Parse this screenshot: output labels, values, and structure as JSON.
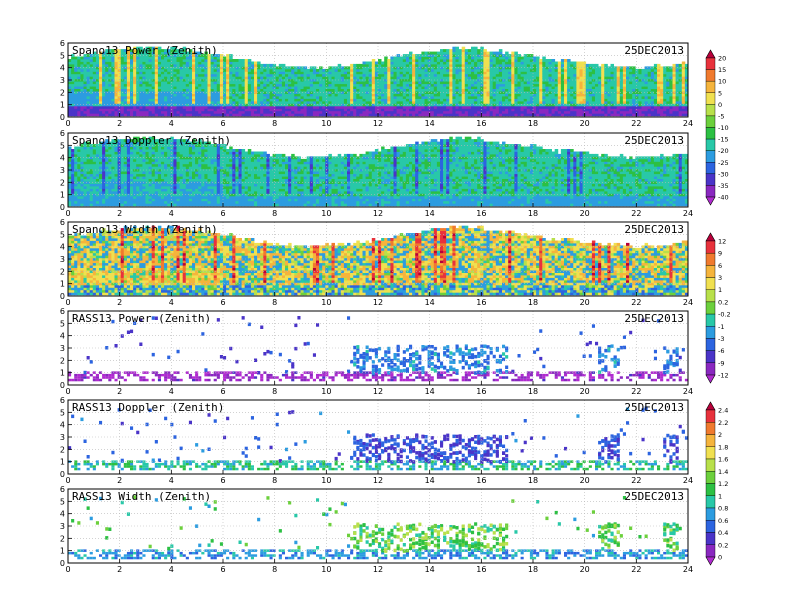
{
  "chart_data": [
    {
      "type": "heatmap",
      "title": "Spano13 Power (Zenith)",
      "date": "25DEC2013",
      "xlim": [
        0,
        24
      ],
      "ylim": [
        0,
        6
      ],
      "x_ticks": [
        "0",
        "2",
        "4",
        "6",
        "8",
        "10",
        "12",
        "14",
        "16",
        "18",
        "20",
        "22",
        "24"
      ],
      "y_ticks": [
        "0",
        "1",
        "2",
        "3",
        "4",
        "5",
        "6"
      ],
      "colorbar": "power",
      "coverage": "full",
      "pattern": {
        "base_level": -17,
        "low_band_level": -35,
        "mid_band_level": -22,
        "streak_level": 4
      }
    },
    {
      "type": "heatmap",
      "title": "Spano13 Doppler (Zenith)",
      "date": "25DEC2013",
      "xlim": [
        0,
        24
      ],
      "ylim": [
        0,
        6
      ],
      "x_ticks": [
        "0",
        "2",
        "4",
        "6",
        "8",
        "10",
        "12",
        "14",
        "16",
        "18",
        "20",
        "22",
        "24"
      ],
      "y_ticks": [
        "0",
        "1",
        "2",
        "3",
        "4",
        "5",
        "6"
      ],
      "colorbar": "power",
      "coverage": "full",
      "pattern": {
        "base_level": -17,
        "low_band_level": -22,
        "mid_band_level": -20,
        "streak_level": -28
      }
    },
    {
      "type": "heatmap",
      "title": "Spano13 Width (Zenith)",
      "date": "25DEC2013",
      "xlim": [
        0,
        24
      ],
      "ylim": [
        0,
        6
      ],
      "x_ticks": [
        "0",
        "2",
        "4",
        "6",
        "8",
        "10",
        "12",
        "14",
        "16",
        "18",
        "20",
        "22",
        "24"
      ],
      "y_ticks": [
        "0",
        "1",
        "2",
        "3",
        "4",
        "5",
        "6"
      ],
      "colorbar": "width",
      "coverage": "full",
      "pattern": {
        "base_level": 1,
        "low_band_level": -1,
        "mid_band_level": 2,
        "streak_level": 9
      }
    },
    {
      "type": "heatmap",
      "title": "RASS13 Power (Zenith)",
      "date": "25DEC2013",
      "xlim": [
        0,
        24
      ],
      "ylim": [
        0,
        6
      ],
      "x_ticks": [
        "0",
        "2",
        "4",
        "6",
        "8",
        "10",
        "12",
        "14",
        "16",
        "18",
        "20",
        "22",
        "24"
      ],
      "y_ticks": [
        "0",
        "1",
        "2",
        "3",
        "4",
        "5",
        "6"
      ],
      "colorbar": "width",
      "coverage": "sparse",
      "pattern": {
        "base_level": -10,
        "low_band_level": -12,
        "mid_band_level": -6,
        "streak_level": -3
      }
    },
    {
      "type": "heatmap",
      "title": "RASS13 Doppler (Zenith)",
      "date": "25DEC2013",
      "xlim": [
        0,
        24
      ],
      "ylim": [
        0,
        6
      ],
      "x_ticks": [
        "0",
        "2",
        "4",
        "6",
        "8",
        "10",
        "12",
        "14",
        "16",
        "18",
        "20",
        "22",
        "24"
      ],
      "y_ticks": [
        "0",
        "1",
        "2",
        "3",
        "4",
        "5",
        "6"
      ],
      "colorbar": "rass",
      "coverage": "sparse",
      "pattern": {
        "base_level": 1.0,
        "low_band_level": 0.9,
        "mid_band_level": 0.5,
        "streak_level": 0.4
      }
    },
    {
      "type": "heatmap",
      "title": "RASS13 Width (Zenith)",
      "date": "25DEC2013",
      "xlim": [
        0,
        24
      ],
      "ylim": [
        0,
        6
      ],
      "x_ticks": [
        "0",
        "2",
        "4",
        "6",
        "8",
        "10",
        "12",
        "14",
        "16",
        "18",
        "20",
        "22",
        "24"
      ],
      "y_ticks": [
        "0",
        "1",
        "2",
        "3",
        "4",
        "5",
        "6"
      ],
      "colorbar": "rass",
      "coverage": "sparse",
      "pattern": {
        "base_level": 0.9,
        "low_band_level": 0.7,
        "mid_band_level": 1.0,
        "streak_level": 1.2
      }
    }
  ],
  "colorbars": {
    "power": {
      "labels": [
        "20",
        "15",
        "10",
        "5",
        "0",
        "-5",
        "-10",
        "-15",
        "-20",
        "-25",
        "-30",
        "-35",
        "-40"
      ],
      "levels": [
        20,
        15,
        10,
        5,
        0,
        -5,
        -10,
        -15,
        -20,
        -25,
        -30,
        -35,
        -40
      ],
      "colors": [
        "#b8003a",
        "#e8323c",
        "#f07a2e",
        "#f5b43c",
        "#f0e050",
        "#b8e04a",
        "#6cd03c",
        "#2cc043",
        "#28c8a8",
        "#2c9ce0",
        "#2c64e0",
        "#4a34c8",
        "#8a28c0",
        "#b02ad0"
      ]
    },
    "width": {
      "labels": [
        "12",
        "9",
        "6",
        "3",
        "1",
        "0.2",
        "-0.2",
        "-1",
        "-3",
        "-6",
        "-9",
        "-12"
      ],
      "levels": [
        12,
        9,
        6,
        3,
        1,
        0.2,
        -0.2,
        -1,
        -3,
        -6,
        -9,
        -12
      ],
      "colors": [
        "#b8003a",
        "#e8323c",
        "#f07a2e",
        "#f5b43c",
        "#f0e050",
        "#b8e04a",
        "#6cd03c",
        "#28c8a8",
        "#2c9ce0",
        "#2c64e0",
        "#4a34c8",
        "#8a28c0",
        "#b02ad0"
      ]
    },
    "rass": {
      "labels": [
        "2.4",
        "2.2",
        "2",
        "1.8",
        "1.6",
        "1.4",
        "1.2",
        "1",
        "0.8",
        "0.6",
        "0.4",
        "0.2",
        "0"
      ],
      "levels": [
        2.4,
        2.2,
        2,
        1.8,
        1.6,
        1.4,
        1.2,
        1,
        0.8,
        0.6,
        0.4,
        0.2,
        0
      ],
      "colors": [
        "#b8003a",
        "#e8323c",
        "#f07a2e",
        "#f5b43c",
        "#f0e050",
        "#b8e04a",
        "#6cd03c",
        "#2cc043",
        "#28c8a8",
        "#2c9ce0",
        "#2c64e0",
        "#4a34c8",
        "#8a28c0",
        "#b02ad0"
      ]
    }
  }
}
